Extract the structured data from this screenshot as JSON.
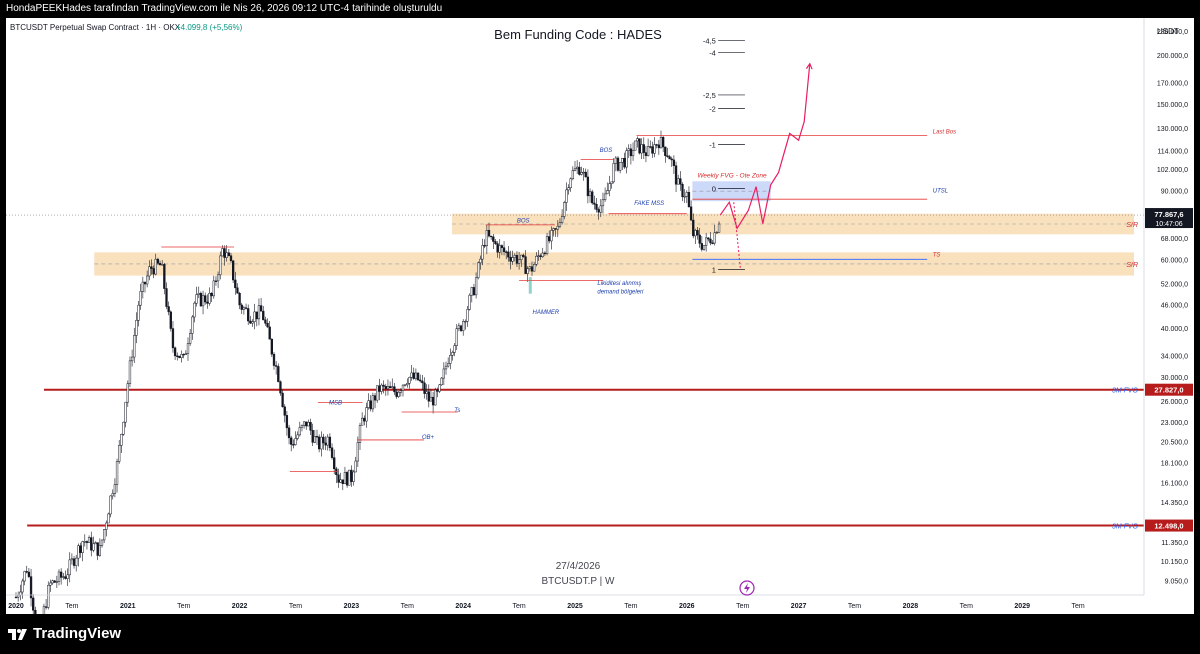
{
  "header_text": "HondaPEEKHades tarafından TradingView.com ile Nis 26, 2026 09:12 UTC-4 tarihinde oluşturuldu",
  "symbol": {
    "name": "BTCUSDT Perpetual Swap Contract · 1H · OKX",
    "change": "+4.099,8 (+5,56%)",
    "change_color": "#089981"
  },
  "brand": "TradingView",
  "chart_data": {
    "type": "candlestick",
    "title": "Bem Funding Code : HADES",
    "subtitle_date": "27/4/2026",
    "watermark": "BTCUSDT.P | W",
    "currency_label": "USDT",
    "y_scale": "log",
    "ylim": [
      8600,
      240000
    ],
    "xlim": [
      2020.0,
      2030.0
    ],
    "y_ticks": [
      {
        "value": 230000,
        "label": "230.000,0"
      },
      {
        "value": 200000,
        "label": "200.000,0"
      },
      {
        "value": 170000,
        "label": "170.000,0"
      },
      {
        "value": 150000,
        "label": "150.000,0"
      },
      {
        "value": 130000,
        "label": "130.000,0"
      },
      {
        "value": 114000,
        "label": "114.000,0"
      },
      {
        "value": 102000,
        "label": "102.000,0"
      },
      {
        "value": 90000,
        "label": "90.000,0"
      },
      {
        "value": 68000,
        "label": "68.000,0"
      },
      {
        "value": 60000,
        "label": "60.000,0"
      },
      {
        "value": 52000,
        "label": "52.000,0"
      },
      {
        "value": 46000,
        "label": "46.000,0"
      },
      {
        "value": 40000,
        "label": "40.000,0"
      },
      {
        "value": 34000,
        "label": "34.000,0"
      },
      {
        "value": 30000,
        "label": "30.000,0"
      },
      {
        "value": 26000,
        "label": "26.000,0"
      },
      {
        "value": 23000,
        "label": "23.000,0"
      },
      {
        "value": 20500,
        "label": "20.500,0"
      },
      {
        "value": 18100,
        "label": "18.100,0"
      },
      {
        "value": 16100,
        "label": "16.100,0"
      },
      {
        "value": 14350,
        "label": "14.350,0"
      },
      {
        "value": 11350,
        "label": "11.350,0"
      },
      {
        "value": 10150,
        "label": "10.150,0"
      },
      {
        "value": 9050,
        "label": "9.050,0"
      }
    ],
    "x_ticks": [
      {
        "value": 2020.0,
        "label": "2020",
        "bold": true
      },
      {
        "value": 2020.5,
        "label": "Tem",
        "bold": false
      },
      {
        "value": 2021.0,
        "label": "2021",
        "bold": true
      },
      {
        "value": 2021.5,
        "label": "Tem",
        "bold": false
      },
      {
        "value": 2022.0,
        "label": "2022",
        "bold": true
      },
      {
        "value": 2022.5,
        "label": "Tem",
        "bold": false
      },
      {
        "value": 2023.0,
        "label": "2023",
        "bold": true
      },
      {
        "value": 2023.5,
        "label": "Tem",
        "bold": false
      },
      {
        "value": 2024.0,
        "label": "2024",
        "bold": true
      },
      {
        "value": 2024.5,
        "label": "Tem",
        "bold": false
      },
      {
        "value": 2025.0,
        "label": "2025",
        "bold": true
      },
      {
        "value": 2025.5,
        "label": "Tem",
        "bold": false
      },
      {
        "value": 2026.0,
        "label": "2026",
        "bold": true
      },
      {
        "value": 2026.5,
        "label": "Tem",
        "bold": false
      },
      {
        "value": 2027.0,
        "label": "2027",
        "bold": true
      },
      {
        "value": 2027.5,
        "label": "Tem",
        "bold": false
      },
      {
        "value": 2028.0,
        "label": "2028",
        "bold": true
      },
      {
        "value": 2028.5,
        "label": "Tem",
        "bold": false
      },
      {
        "value": 2029.0,
        "label": "2029",
        "bold": true
      },
      {
        "value": 2029.5,
        "label": "Tem",
        "bold": false
      }
    ],
    "price_points": [
      [
        2020.0,
        8200
      ],
      [
        2020.1,
        9800
      ],
      [
        2020.2,
        6500
      ],
      [
        2020.3,
        8800
      ],
      [
        2020.45,
        9400
      ],
      [
        2020.6,
        11500
      ],
      [
        2020.75,
        10800
      ],
      [
        2020.9,
        17500
      ],
      [
        2021.0,
        29000
      ],
      [
        2021.1,
        47000
      ],
      [
        2021.2,
        57000
      ],
      [
        2021.3,
        58000
      ],
      [
        2021.4,
        36000
      ],
      [
        2021.5,
        33000
      ],
      [
        2021.6,
        47000
      ],
      [
        2021.75,
        48000
      ],
      [
        2021.85,
        64000
      ],
      [
        2021.92,
        58000
      ],
      [
        2022.0,
        46000
      ],
      [
        2022.1,
        43000
      ],
      [
        2022.2,
        44000
      ],
      [
        2022.35,
        30000
      ],
      [
        2022.45,
        20000
      ],
      [
        2022.6,
        23000
      ],
      [
        2022.7,
        20000
      ],
      [
        2022.8,
        21000
      ],
      [
        2022.88,
        16500
      ],
      [
        2023.0,
        16600
      ],
      [
        2023.1,
        23500
      ],
      [
        2023.25,
        28000
      ],
      [
        2023.4,
        27500
      ],
      [
        2023.5,
        30000
      ],
      [
        2023.6,
        29500
      ],
      [
        2023.7,
        26000
      ],
      [
        2023.78,
        27000
      ],
      [
        2023.88,
        35000
      ],
      [
        2024.0,
        42000
      ],
      [
        2024.1,
        51000
      ],
      [
        2024.2,
        69000
      ],
      [
        2024.35,
        63000
      ],
      [
        2024.5,
        60000
      ],
      [
        2024.6,
        56000
      ],
      [
        2024.7,
        63000
      ],
      [
        2024.85,
        72000
      ],
      [
        2024.95,
        98000
      ],
      [
        2025.05,
        104000
      ],
      [
        2025.15,
        84000
      ],
      [
        2025.25,
        82000
      ],
      [
        2025.35,
        104000
      ],
      [
        2025.45,
        108000
      ],
      [
        2025.55,
        118000
      ],
      [
        2025.65,
        112000
      ],
      [
        2025.75,
        121000
      ],
      [
        2025.85,
        110000
      ],
      [
        2025.93,
        91000
      ],
      [
        2026.0,
        88000
      ],
      [
        2026.05,
        70000
      ],
      [
        2026.15,
        65000
      ],
      [
        2026.25,
        70000
      ],
      [
        2026.3,
        77868
      ]
    ],
    "current_price": {
      "value": 77867.6,
      "label": "77.867,6",
      "countdown": "10:47:06",
      "color": "#089981"
    },
    "horizontal_levels": [
      {
        "value": 27827,
        "label": "27.827,0",
        "tag": "3M FVG",
        "color": "#b71c1c",
        "x_start": 2020.25
      },
      {
        "value": 12498,
        "label": "12.498,0",
        "tag": "3M FVG",
        "color": "#b71c1c",
        "x_start": 2020.1
      }
    ],
    "zones": [
      {
        "name": "S/R",
        "top": 78500,
        "bottom": 69500,
        "x_start": 2023.9,
        "x_end": 2030.0,
        "color": "#f8d7a8",
        "label_color": "#d32f2f"
      },
      {
        "name": "S/R",
        "top": 62500,
        "bottom": 54500,
        "x_start": 2020.7,
        "x_end": 2030.0,
        "color": "#f8d7a8",
        "label_color": "#d32f2f"
      },
      {
        "name": "Weekly FVG - Ote Zone",
        "top": 95000,
        "bottom": 84500,
        "x_start": 2026.05,
        "x_end": 2026.75,
        "color": "#bcccf7",
        "label_color": "#d32f2f"
      }
    ],
    "fib_levels": [
      {
        "label": "-4,5",
        "value": 218000
      },
      {
        "label": "-4",
        "value": 203000
      },
      {
        "label": "-2,5",
        "value": 158000
      },
      {
        "label": "-2",
        "value": 146000
      },
      {
        "label": "-1",
        "value": 118000
      },
      {
        "label": "0",
        "value": 91000
      },
      {
        "label": "1",
        "value": 56500
      }
    ],
    "annotations": [
      {
        "text": "Last Bos",
        "x": 2028.2,
        "y": 126000,
        "color": "#d32f2f"
      },
      {
        "text": "UTSL",
        "x": 2028.2,
        "y": 89000,
        "color": "#1e40af"
      },
      {
        "text": "TS",
        "x": 2028.2,
        "y": 61000,
        "color": "#d32f2f"
      },
      {
        "text": "BOS",
        "x": 2025.22,
        "y": 113000,
        "color": "#1e40af"
      },
      {
        "text": "BOS",
        "x": 2024.48,
        "y": 74500,
        "color": "#1e40af"
      },
      {
        "text": "FAKE MSS",
        "x": 2025.53,
        "y": 82500,
        "color": "#1e40af"
      },
      {
        "text": "Likiditesi alınmış",
        "x": 2025.2,
        "y": 51500,
        "color": "#1e40af"
      },
      {
        "text": "demand bölgeleri",
        "x": 2025.2,
        "y": 49000,
        "color": "#1e40af"
      },
      {
        "text": "HAMMER",
        "x": 2024.62,
        "y": 43500,
        "color": "#1e40af"
      },
      {
        "text": "MSB",
        "x": 2022.8,
        "y": 25500,
        "color": "#1e40af"
      },
      {
        "text": "Ts",
        "x": 2023.92,
        "y": 24400,
        "color": "#1e40af"
      },
      {
        "text": "OB+",
        "x": 2023.63,
        "y": 20800,
        "color": "#1e40af"
      }
    ],
    "projection": [
      [
        2026.3,
        77868
      ],
      [
        2026.38,
        84000
      ],
      [
        2026.45,
        72000
      ],
      [
        2026.55,
        80000
      ],
      [
        2026.62,
        92000
      ],
      [
        2026.68,
        74000
      ],
      [
        2026.75,
        93000
      ],
      [
        2026.82,
        100000
      ],
      [
        2026.92,
        126000
      ],
      [
        2027.0,
        121000
      ],
      [
        2027.05,
        135000
      ],
      [
        2027.1,
        190000
      ]
    ]
  }
}
